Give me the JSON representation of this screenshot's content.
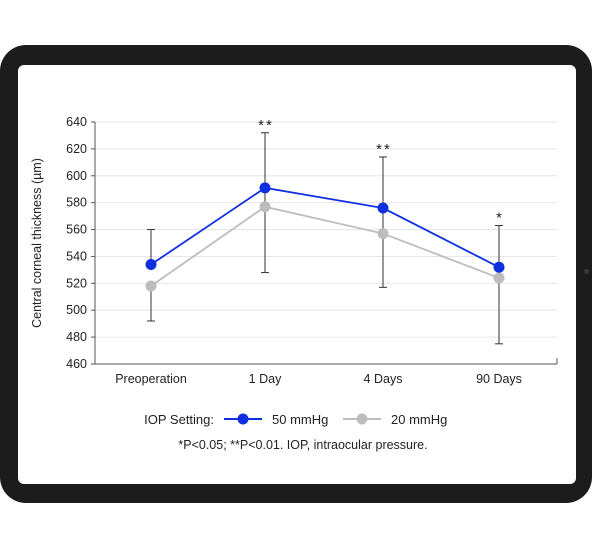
{
  "chart_data": {
    "type": "line",
    "categories": [
      "Preoperation",
      "1 Day",
      "4 Days",
      "90 Days"
    ],
    "ylabel": "Central corneal thickness (µm)",
    "ylim": [
      460,
      640
    ],
    "yticks": [
      460,
      480,
      500,
      520,
      540,
      560,
      580,
      600,
      620,
      640
    ],
    "grid": true,
    "series": [
      {
        "name": "50 mmHg",
        "color": "#1030e0",
        "values": [
          534,
          591,
          576,
          532
        ],
        "err_low": [
          null,
          528,
          517,
          475
        ],
        "err_high": [
          560,
          632,
          614,
          563
        ]
      },
      {
        "name": "20 mmHg",
        "color": "#bdbdbd",
        "values": [
          518,
          577,
          557,
          524
        ],
        "err_low": [
          492,
          null,
          null,
          null
        ],
        "err_high": [
          null,
          null,
          null,
          null
        ]
      }
    ],
    "significance": [
      "",
      "**",
      "**",
      "*"
    ],
    "legend_title": "IOP Setting:",
    "footnote": "*P<0.05; **P<0.01. IOP, intraocular pressure."
  }
}
